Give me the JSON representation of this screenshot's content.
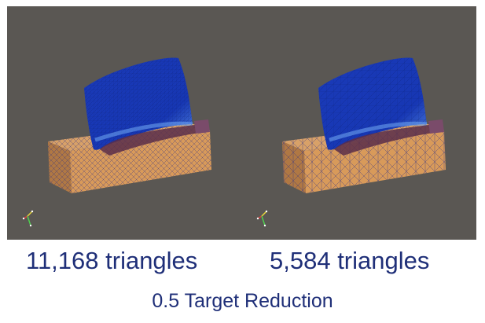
{
  "captions": {
    "left_count": "11,168 triangles",
    "right_count": "5,584 triangles",
    "reduction": "0.5 Target Reduction"
  },
  "viewport": {
    "background": "#5a5753"
  },
  "colors": {
    "blade": "#1737b4",
    "blade_highlight": "#4e82e0",
    "base": "#d89a5a",
    "base_dark": "#b07844",
    "edges": "#2a2f8a",
    "caption": "#1f2f78"
  },
  "icons": [
    "axes-orientation-icon"
  ]
}
